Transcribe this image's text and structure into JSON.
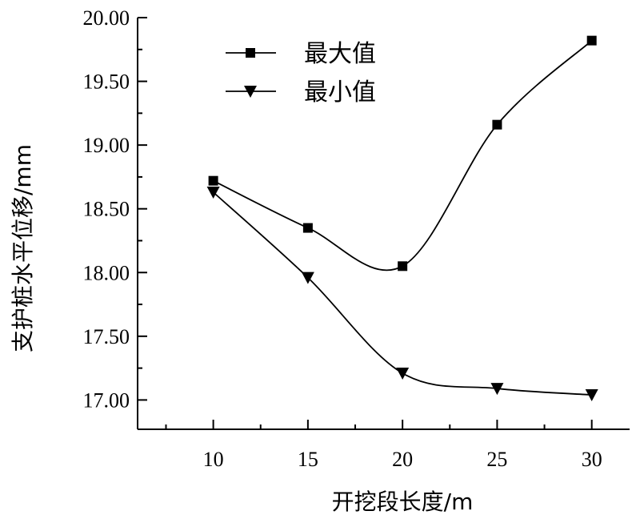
{
  "chart_data": {
    "type": "line",
    "xlabel": "开挖段长度/m",
    "ylabel": "支护桩水平位移/mm",
    "x": [
      10,
      15,
      20,
      25,
      30
    ],
    "xticks": [
      "10",
      "15",
      "20",
      "25",
      "30"
    ],
    "xlim": [
      6,
      32
    ],
    "ylim": [
      16.77,
      20.0
    ],
    "yticks": [
      "17.00",
      "17.50",
      "18.00",
      "18.50",
      "19.00",
      "19.50",
      "20.00"
    ],
    "ytick_values": [
      17.0,
      17.5,
      18.0,
      18.5,
      19.0,
      19.5,
      20.0
    ],
    "legend_position": "top-left",
    "grid": false,
    "series": [
      {
        "name": "最大值",
        "marker": "square",
        "values": [
          18.72,
          18.35,
          18.05,
          19.16,
          19.82
        ]
      },
      {
        "name": "最小值",
        "marker": "triangle-down",
        "values": [
          18.63,
          17.96,
          17.21,
          17.09,
          17.04
        ]
      }
    ]
  }
}
